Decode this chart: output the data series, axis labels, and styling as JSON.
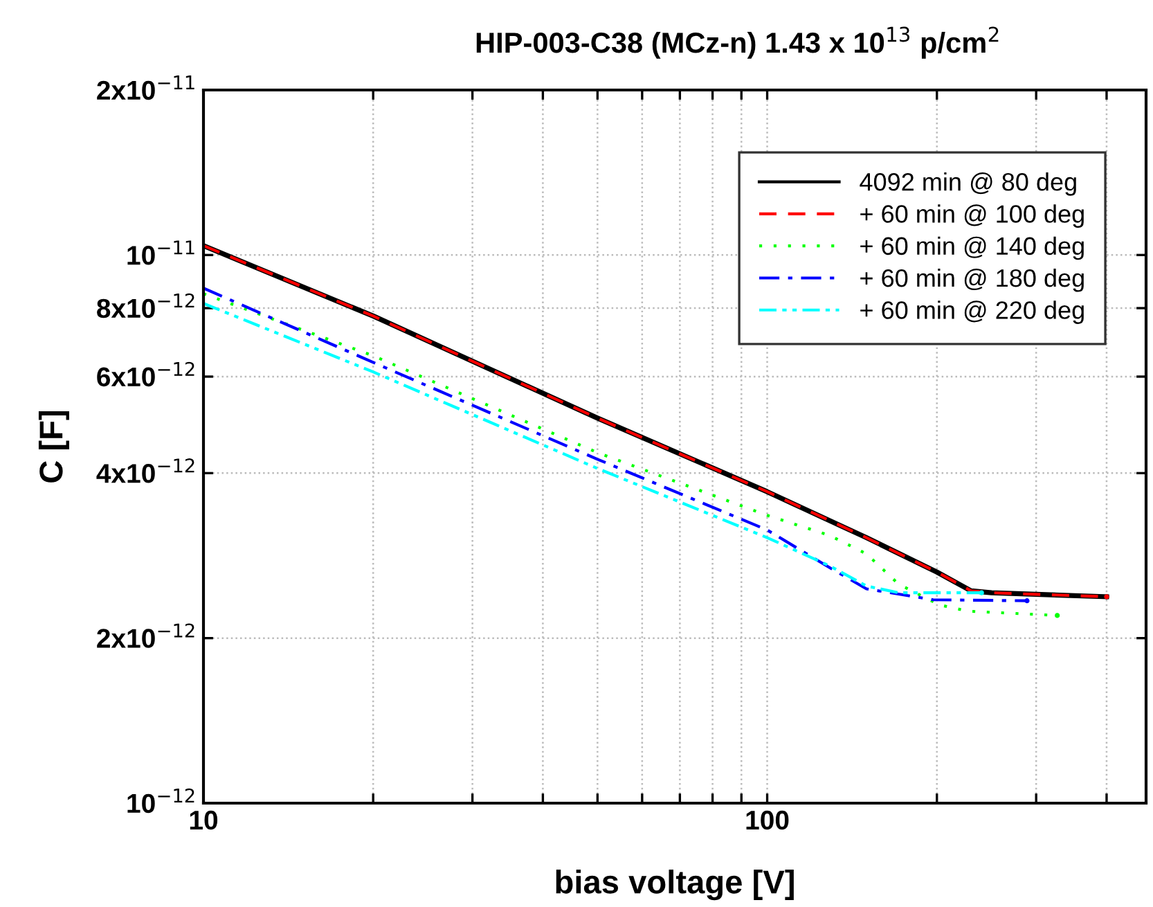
{
  "chart_data": {
    "type": "line",
    "title": "HIP-003-C38 (MCz-n) 1.43 x 10$^{13}$ p/cm$^{2}$",
    "xlabel": "bias voltage [V]",
    "ylabel": "C [F]",
    "log": "xy",
    "grid": true,
    "legend": "top right",
    "marker": "none",
    "xlim": [
      10,
      470
    ],
    "ylim": [
      1e-12,
      2e-11
    ],
    "xticks": [
      10,
      {
        "value": 20,
        "label": null
      },
      {
        "value": 30,
        "label": null
      },
      {
        "value": 40,
        "label": null
      },
      {
        "value": 50,
        "label": null
      },
      {
        "value": 60,
        "label": null
      },
      {
        "value": 70,
        "label": null
      },
      {
        "value": 80,
        "label": null
      },
      {
        "value": 90,
        "label": null
      },
      100,
      {
        "value": 200,
        "label": null
      },
      {
        "value": 300,
        "label": null
      },
      {
        "value": 400,
        "label": null
      }
    ],
    "yticks": [
      {
        "value": 1e-12,
        "label": "10$^{−12}$"
      },
      {
        "value": 2e-12,
        "label": "2x10$^{−12}$"
      },
      {
        "value": 4e-12,
        "label": "4x10$^{−12}$"
      },
      {
        "value": 6e-12,
        "label": "6x10$^{−12}$"
      },
      {
        "value": 8e-12,
        "label": "8x10$^{−12}$"
      },
      {
        "value": 1e-11,
        "label": "10$^{−11}$"
      },
      {
        "value": 2e-11,
        "label": "2x10$^{−11}$"
      }
    ],
    "series": [
      {
        "name": "4092 min @ 80 deg",
        "color": "#000000",
        "line_style": "solid",
        "x": [
          10,
          20,
          50,
          100,
          150,
          200,
          230,
          250,
          400
        ],
        "values": [
          1.04e-11,
          7.74e-12,
          5.04e-12,
          3.7e-12,
          3.05e-12,
          2.64e-12,
          2.44e-12,
          2.42e-12,
          2.38e-12
        ]
      },
      {
        "name": "+ 60 min @ 100 deg",
        "color": "#ff0000",
        "line_style": "dashed",
        "x": [
          10,
          20,
          50,
          100,
          150,
          200,
          230,
          250,
          400
        ],
        "values": [
          1.04e-11,
          7.74e-12,
          5.04e-12,
          3.7e-12,
          3.05e-12,
          2.64e-12,
          2.44e-12,
          2.42e-12,
          2.38e-12
        ]
      },
      {
        "name": "+ 60 min @ 140 deg",
        "color": "#00ff00",
        "line_style": "dotted",
        "x": [
          10,
          20,
          50,
          100,
          129,
          150,
          171,
          202,
          227,
          327
        ],
        "values": [
          8.5e-12,
          6.55e-12,
          4.36e-12,
          3.35e-12,
          3.08e-12,
          2.85e-12,
          2.51e-12,
          2.3e-12,
          2.24e-12,
          2.2e-12
        ]
      },
      {
        "name": "+ 60 min @ 180 deg",
        "color": "#0000ff",
        "line_style": "dashdot",
        "x": [
          10,
          20,
          50,
          100,
          129,
          150,
          197,
          289
        ],
        "values": [
          8.7e-12,
          6.37e-12,
          4.24e-12,
          3.15e-12,
          2.69e-12,
          2.46e-12,
          2.35e-12,
          2.34e-12
        ]
      },
      {
        "name": "+ 60 min @ 220 deg",
        "color": "#00ffff",
        "line_style": "dashdotdot",
        "x": [
          10,
          20,
          50,
          100,
          129,
          150,
          171,
          240
        ],
        "values": [
          8.16e-12,
          6.12e-12,
          4.08e-12,
          3.05e-12,
          2.71e-12,
          2.49e-12,
          2.42e-12,
          2.42e-12
        ]
      }
    ]
  }
}
